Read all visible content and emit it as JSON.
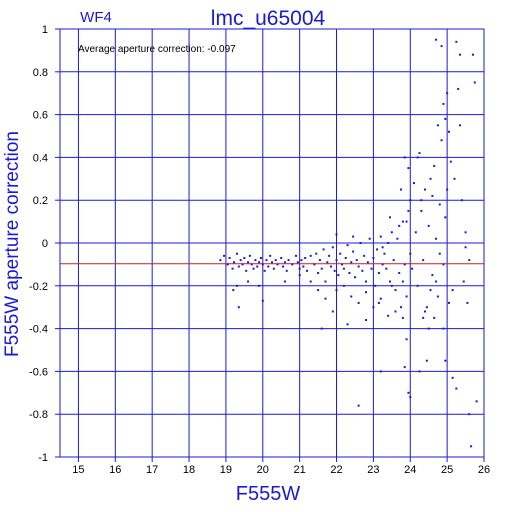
{
  "chart_data": {
    "type": "scatter",
    "title": "lmc_u65004",
    "chip_label": "WF4",
    "annotation": "Average aperture correction: -0.097",
    "xlabel": "F555W",
    "ylabel": "F555W aperture correction",
    "xlim": [
      14.5,
      26
    ],
    "ylim": [
      -1,
      1
    ],
    "xticks": [
      15,
      16,
      17,
      18,
      19,
      20,
      21,
      22,
      23,
      24,
      25,
      26
    ],
    "yticks": [
      -1,
      -0.8,
      -0.6,
      -0.4,
      -0.2,
      0,
      0.2,
      0.4,
      0.6,
      0.8,
      1
    ],
    "ytick_labels": [
      "-1",
      "-0.8",
      "-0.6",
      "-0.4",
      "-0.2",
      "0",
      "0.2",
      "0.4",
      "0.6",
      "0.8",
      "1"
    ],
    "grid": true,
    "reference_line": -0.097,
    "colors": {
      "axes": "#1a1ad6",
      "points": "#1a1ad6",
      "reference": "#c81e1e",
      "ticks_text": "#000000"
    },
    "points": [
      [
        18.85,
        -0.08
      ],
      [
        18.95,
        -0.06
      ],
      [
        19.05,
        -0.1
      ],
      [
        19.1,
        -0.07
      ],
      [
        19.18,
        -0.12
      ],
      [
        19.22,
        -0.09
      ],
      [
        19.3,
        -0.05
      ],
      [
        19.35,
        -0.11
      ],
      [
        19.4,
        -0.08
      ],
      [
        19.45,
        -0.1
      ],
      [
        19.5,
        -0.07
      ],
      [
        19.55,
        -0.13
      ],
      [
        19.6,
        -0.09
      ],
      [
        19.65,
        -0.06
      ],
      [
        19.7,
        -0.1
      ],
      [
        19.75,
        -0.12
      ],
      [
        19.8,
        -0.08
      ],
      [
        19.85,
        -0.11
      ],
      [
        19.9,
        -0.09
      ],
      [
        19.95,
        -0.07
      ],
      [
        20.0,
        -0.1
      ],
      [
        20.05,
        -0.13
      ],
      [
        20.1,
        -0.08
      ],
      [
        20.15,
        -0.11
      ],
      [
        20.2,
        -0.06
      ],
      [
        20.25,
        -0.09
      ],
      [
        20.3,
        -0.12
      ],
      [
        20.35,
        -0.08
      ],
      [
        20.4,
        -0.1
      ],
      [
        20.5,
        -0.07
      ],
      [
        20.55,
        -0.11
      ],
      [
        20.6,
        -0.09
      ],
      [
        20.65,
        -0.13
      ],
      [
        20.7,
        -0.08
      ],
      [
        20.8,
        -0.1
      ],
      [
        20.9,
        -0.06
      ],
      [
        20.95,
        -0.09
      ],
      [
        21.0,
        -0.12
      ],
      [
        21.05,
        -0.08
      ],
      [
        21.1,
        -0.11
      ],
      [
        21.15,
        -0.07
      ],
      [
        19.2,
        -0.22
      ],
      [
        19.35,
        -0.3
      ],
      [
        19.3,
        -0.2
      ],
      [
        19.6,
        -0.18
      ],
      [
        19.9,
        -0.2
      ],
      [
        20.0,
        -0.27
      ],
      [
        20.6,
        -0.18
      ],
      [
        21.0,
        -0.15
      ],
      [
        21.2,
        -0.13
      ],
      [
        21.3,
        -0.06
      ],
      [
        21.4,
        -0.1
      ],
      [
        21.45,
        -0.05
      ],
      [
        21.5,
        -0.14
      ],
      [
        21.55,
        -0.08
      ],
      [
        21.6,
        -0.12
      ],
      [
        21.65,
        -0.03
      ],
      [
        21.7,
        -0.18
      ],
      [
        21.75,
        -0.09
      ],
      [
        21.8,
        -0.06
      ],
      [
        21.85,
        -0.11
      ],
      [
        21.9,
        -0.02
      ],
      [
        21.95,
        -0.13
      ],
      [
        22.0,
        -0.08
      ],
      [
        22.05,
        -0.15
      ],
      [
        22.1,
        -0.05
      ],
      [
        22.15,
        -0.1
      ],
      [
        22.2,
        -0.12
      ],
      [
        22.25,
        -0.07
      ],
      [
        22.3,
        -0.01
      ],
      [
        22.35,
        -0.14
      ],
      [
        22.4,
        -0.09
      ],
      [
        22.45,
        -0.04
      ],
      [
        22.5,
        -0.16
      ],
      [
        22.55,
        -0.08
      ],
      [
        22.6,
        -0.11
      ],
      [
        22.65,
        0.0
      ],
      [
        22.7,
        -0.13
      ],
      [
        22.75,
        -0.06
      ],
      [
        22.8,
        -0.18
      ],
      [
        22.85,
        -0.09
      ],
      [
        22.9,
        0.02
      ],
      [
        22.95,
        -0.12
      ],
      [
        23.0,
        -0.07
      ],
      [
        23.05,
        -0.2
      ],
      [
        23.1,
        -0.03
      ],
      [
        23.15,
        -0.14
      ],
      [
        23.2,
        0.03
      ],
      [
        23.25,
        -0.1
      ],
      [
        21.5,
        -0.22
      ],
      [
        21.7,
        -0.26
      ],
      [
        21.9,
        -0.32
      ],
      [
        22.0,
        -0.22
      ],
      [
        22.2,
        -0.2
      ],
      [
        22.4,
        -0.25
      ],
      [
        22.6,
        -0.28
      ],
      [
        22.8,
        -0.23
      ],
      [
        23.0,
        -0.3
      ],
      [
        21.6,
        -0.4
      ],
      [
        22.3,
        -0.38
      ],
      [
        22.8,
        -0.36
      ],
      [
        22.0,
        0.04
      ],
      [
        22.45,
        0.03
      ],
      [
        21.3,
        -0.18
      ],
      [
        23.3,
        -0.05
      ],
      [
        23.35,
        -0.12
      ],
      [
        23.4,
        0.0
      ],
      [
        23.45,
        -0.18
      ],
      [
        23.5,
        0.05
      ],
      [
        23.55,
        -0.08
      ],
      [
        23.6,
        -0.22
      ],
      [
        23.65,
        0.02
      ],
      [
        23.7,
        -0.14
      ],
      [
        23.75,
        -0.3
      ],
      [
        23.8,
        0.1
      ],
      [
        23.85,
        -0.1
      ],
      [
        23.9,
        -0.25
      ],
      [
        23.95,
        0.15
      ],
      [
        24.0,
        -0.05
      ],
      [
        23.4,
        -0.34
      ],
      [
        23.6,
        -0.32
      ],
      [
        23.2,
        -0.26
      ],
      [
        23.7,
        0.08
      ],
      [
        23.5,
        -0.2
      ],
      [
        23.25,
        -0.02
      ],
      [
        23.15,
        -0.28
      ],
      [
        23.8,
        -0.18
      ],
      [
        23.45,
        0.12
      ],
      [
        23.85,
        0.4
      ],
      [
        23.95,
        0.35
      ],
      [
        23.75,
        0.25
      ],
      [
        24.0,
        0.2
      ],
      [
        23.9,
        0.1
      ],
      [
        23.8,
        -0.35
      ],
      [
        23.9,
        -0.45
      ],
      [
        23.85,
        -0.58
      ],
      [
        23.95,
        -0.7
      ],
      [
        23.2,
        -0.6
      ],
      [
        22.6,
        -0.76
      ],
      [
        24.0,
        -0.72
      ],
      [
        24.05,
        -0.12
      ],
      [
        24.1,
        0.28
      ],
      [
        24.15,
        0.05
      ],
      [
        24.2,
        -0.2
      ],
      [
        24.25,
        0.42
      ],
      [
        24.3,
        0.15
      ],
      [
        24.35,
        -0.08
      ],
      [
        24.4,
        0.25
      ],
      [
        24.45,
        -0.3
      ],
      [
        24.5,
        0.08
      ],
      [
        24.55,
        0.3
      ],
      [
        24.6,
        -0.15
      ],
      [
        24.65,
        0.36
      ],
      [
        24.7,
        0.02
      ],
      [
        24.75,
        -0.25
      ],
      [
        24.8,
        0.18
      ],
      [
        24.85,
        0.48
      ],
      [
        24.9,
        -0.1
      ],
      [
        24.95,
        0.12
      ],
      [
        25.0,
        0.25
      ],
      [
        24.2,
        0.4
      ],
      [
        24.35,
        -0.35
      ],
      [
        24.5,
        -0.4
      ],
      [
        24.6,
        0.22
      ],
      [
        24.7,
        -0.18
      ],
      [
        24.8,
        -0.05
      ],
      [
        24.9,
        0.65
      ],
      [
        24.95,
        0.58
      ],
      [
        25.0,
        0.7
      ],
      [
        24.25,
        -0.6
      ],
      [
        24.45,
        -0.55
      ],
      [
        24.55,
        -0.22
      ],
      [
        24.65,
        -0.35
      ],
      [
        24.75,
        0.55
      ],
      [
        24.85,
        0.92
      ],
      [
        24.7,
        0.95
      ],
      [
        24.95,
        -0.55
      ],
      [
        24.9,
        -0.4
      ],
      [
        24.4,
        -0.32
      ],
      [
        24.3,
        0.2
      ],
      [
        25.05,
        0.52
      ],
      [
        25.1,
        0.38
      ],
      [
        25.15,
        -0.22
      ],
      [
        25.2,
        0.3
      ],
      [
        25.25,
        0.94
      ],
      [
        25.3,
        0.72
      ],
      [
        25.35,
        0.88
      ],
      [
        25.4,
        0.2
      ],
      [
        25.45,
        -0.18
      ],
      [
        25.5,
        0.05
      ],
      [
        25.55,
        -0.28
      ],
      [
        25.6,
        -0.8
      ],
      [
        25.65,
        -0.95
      ],
      [
        25.7,
        0.88
      ],
      [
        25.75,
        0.75
      ],
      [
        25.8,
        -0.74
      ],
      [
        25.15,
        -0.63
      ],
      [
        25.25,
        -0.68
      ],
      [
        25.05,
        -0.28
      ],
      [
        25.35,
        0.55
      ],
      [
        25.5,
        -0.02
      ],
      [
        25.6,
        -0.08
      ]
    ]
  }
}
